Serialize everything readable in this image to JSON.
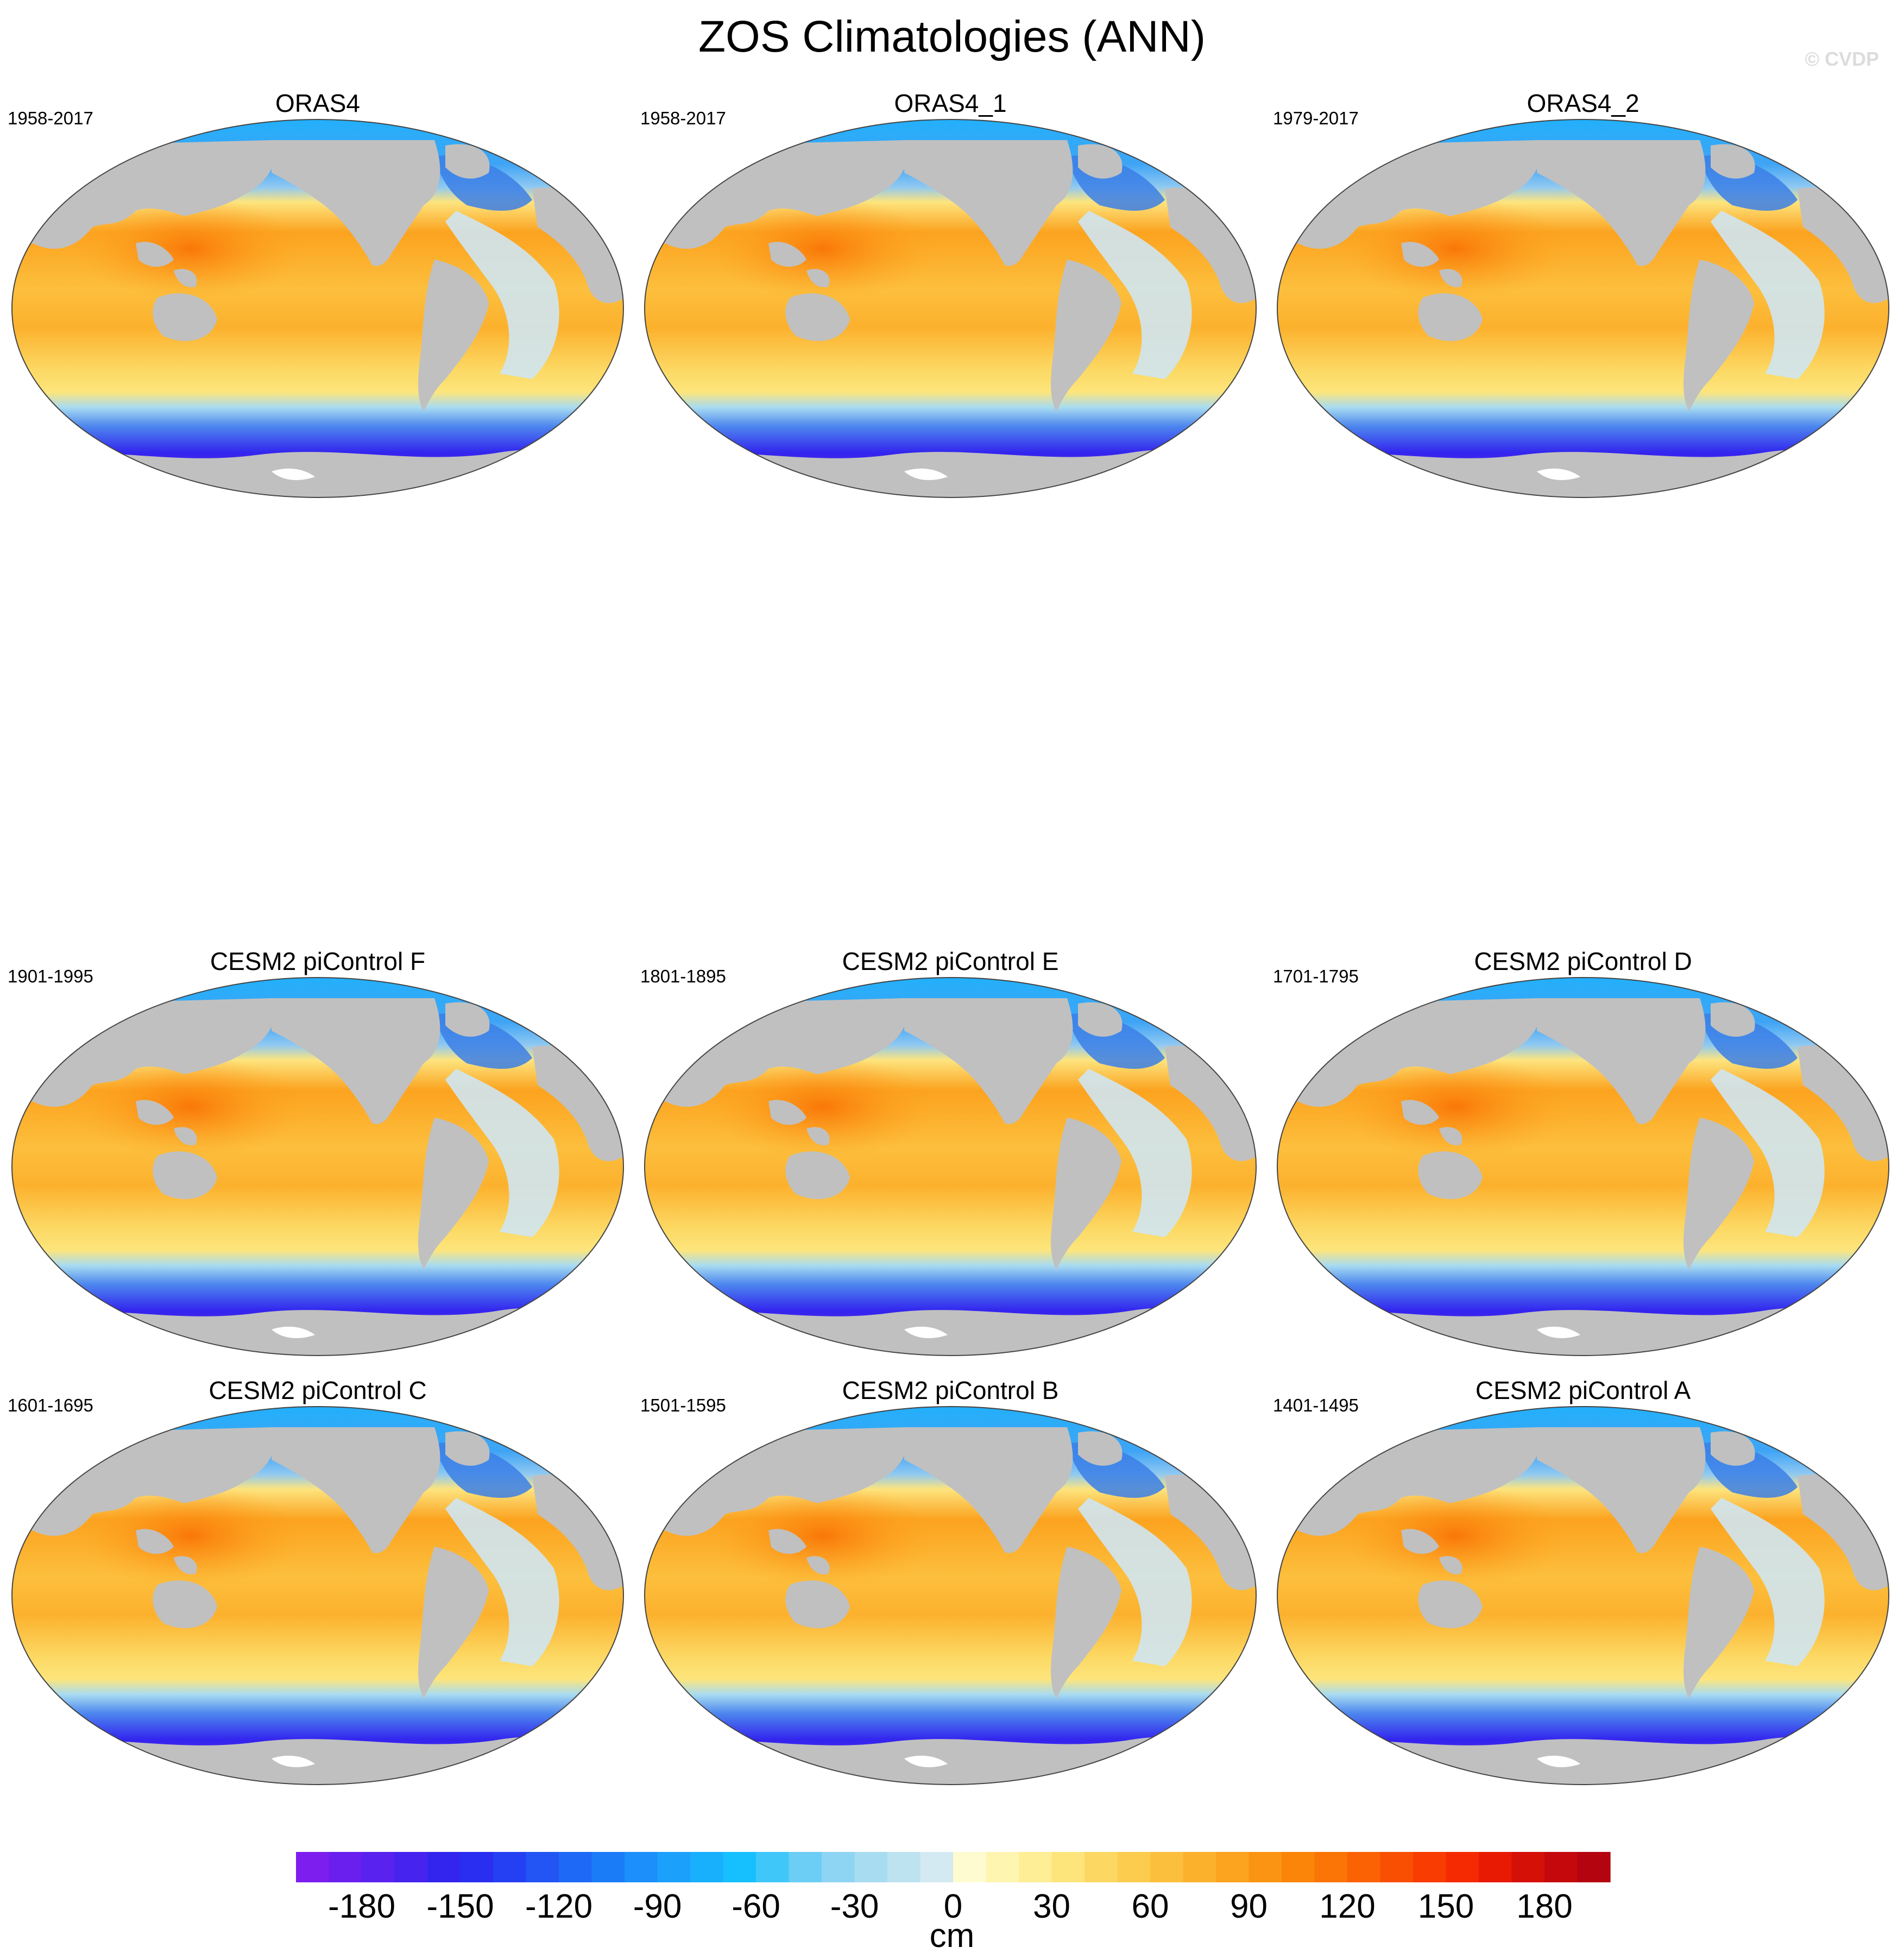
{
  "figure": {
    "title": "ZOS Climatologies (ANN)",
    "credit": "© CVDP"
  },
  "panels": [
    {
      "title": "ORAS4",
      "years": "1958-2017",
      "row": 0,
      "col": 0
    },
    {
      "title": "ORAS4_1",
      "years": "1958-2017",
      "row": 0,
      "col": 1
    },
    {
      "title": "ORAS4_2",
      "years": "1979-2017",
      "row": 0,
      "col": 2
    },
    {
      "title": "CESM2 piControl F",
      "years": "1901-1995",
      "row": 1,
      "col": 0
    },
    {
      "title": "CESM2 piControl E",
      "years": "1801-1895",
      "row": 1,
      "col": 1
    },
    {
      "title": "CESM2 piControl D",
      "years": "1701-1795",
      "row": 1,
      "col": 2
    },
    {
      "title": "CESM2 piControl C",
      "years": "1601-1695",
      "row": 2,
      "col": 0
    },
    {
      "title": "CESM2 piControl B",
      "years": "1501-1595",
      "row": 2,
      "col": 1
    },
    {
      "title": "CESM2 piControl A",
      "years": "1401-1495",
      "row": 2,
      "col": 2
    }
  ],
  "colorbar": {
    "unit": "cm",
    "tick_labels": [
      "-180",
      "-150",
      "-120",
      "-90",
      "-60",
      "-30",
      "0",
      "30",
      "60",
      "90",
      "120",
      "150",
      "180"
    ],
    "tick_values": [
      -180,
      -150,
      -120,
      -90,
      -60,
      -30,
      0,
      30,
      60,
      90,
      120,
      150,
      180
    ],
    "min": -200,
    "max": 200,
    "step": 10,
    "colors": [
      "#7d1eef",
      "#6a1fef",
      "#5922ee",
      "#4623ee",
      "#3324ee",
      "#2a2ef0",
      "#2540f2",
      "#2255f4",
      "#1e69f6",
      "#1b7cf8",
      "#1c8ffa",
      "#1ba0fb",
      "#18b0fd",
      "#16c0fe",
      "#3fc7fa",
      "#6ccdf5",
      "#8ed5f3",
      "#a8dcf1",
      "#bde3f0",
      "#d3eaf2",
      "#fefbd0",
      "#fef5b0",
      "#feee95",
      "#fde57c",
      "#fcd863",
      "#fccc4f",
      "#fcbf3d",
      "#fcb12d",
      "#fca31f",
      "#fb9412",
      "#fa8509",
      "#fa7406",
      "#fa6204",
      "#f94f03",
      "#f83c02",
      "#f62a02",
      "#e81a03",
      "#d51006",
      "#c4080b",
      "#b4040f"
    ]
  },
  "maps": {
    "ocean_colors": {
      "warm_pool": "#fb8a14",
      "tropics": "#fcb22e",
      "subtropics": "#fde47e",
      "atlantic": "#cfe6f2",
      "north_atlantic": "#3b7fe6",
      "arctic": "#22b0fb",
      "southern_ocean_band": "#4c86ee",
      "antarctic_edge": "#5a2ef0",
      "land": "#c0c0c0"
    }
  }
}
